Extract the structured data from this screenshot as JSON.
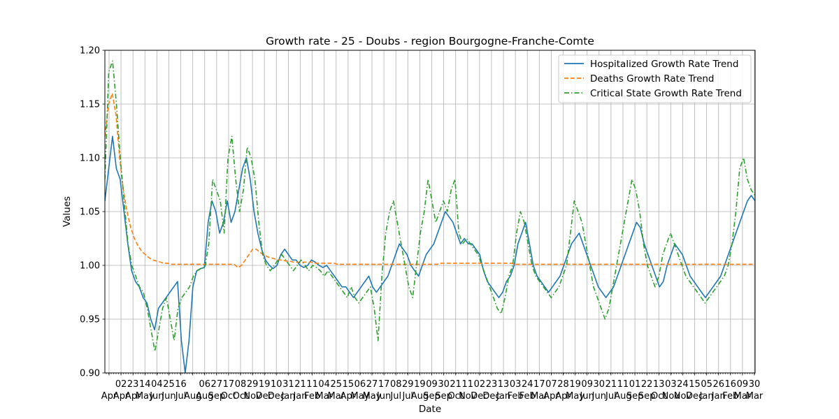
{
  "chart_data": {
    "type": "line",
    "title": "Growth rate - 25 - Doubs - region Bourgogne-Franche-Comte",
    "xlabel": "Date",
    "ylabel": "Values",
    "ylim": [
      0.9,
      1.2
    ],
    "yticks": [
      "0.90",
      "0.95",
      "1.00",
      "1.05",
      "1.10",
      "1.15",
      "1.20"
    ],
    "grid": true,
    "legend_position": "top-right",
    "x_tick_labels": [
      {
        "day": "",
        "month": "Apr"
      },
      {
        "day": "02",
        "month": "Apr"
      },
      {
        "day": "23",
        "month": "Apr"
      },
      {
        "day": "14",
        "month": "May"
      },
      {
        "day": "04",
        "month": "Jun"
      },
      {
        "day": "25",
        "month": "Jun"
      },
      {
        "day": "16",
        "month": "Jul"
      },
      {
        "day": "",
        "month": "Aug"
      },
      {
        "day": "06",
        "month": "Aug"
      },
      {
        "day": "27",
        "month": "Sep"
      },
      {
        "day": "17",
        "month": "Oct"
      },
      {
        "day": "08",
        "month": "Oct"
      },
      {
        "day": "29",
        "month": "Nov"
      },
      {
        "day": "19",
        "month": "Dec"
      },
      {
        "day": "10",
        "month": "Dec"
      },
      {
        "day": "31",
        "month": "Jan"
      },
      {
        "day": "21",
        "month": "Jan"
      },
      {
        "day": "11",
        "month": "Feb"
      },
      {
        "day": "04",
        "month": "Mar"
      },
      {
        "day": "25",
        "month": "Mar"
      },
      {
        "day": "15",
        "month": "Apr"
      },
      {
        "day": "06",
        "month": "May"
      },
      {
        "day": "27",
        "month": "May"
      },
      {
        "day": "17",
        "month": "Jun"
      },
      {
        "day": "08",
        "month": "Jul"
      },
      {
        "day": "29",
        "month": "Jul"
      },
      {
        "day": "19",
        "month": "Aug"
      },
      {
        "day": "09",
        "month": "Sep"
      },
      {
        "day": "30",
        "month": "Sep"
      },
      {
        "day": "21",
        "month": "Oct"
      },
      {
        "day": "11",
        "month": "Nov"
      },
      {
        "day": "02",
        "month": "Dec"
      },
      {
        "day": "23",
        "month": "Dec"
      },
      {
        "day": "13",
        "month": "Jan"
      },
      {
        "day": "03",
        "month": "Feb"
      },
      {
        "day": "24",
        "month": "Feb"
      },
      {
        "day": "17",
        "month": "Mar"
      },
      {
        "day": "07",
        "month": "Apr"
      },
      {
        "day": "28",
        "month": "Apr"
      },
      {
        "day": "19",
        "month": "May"
      },
      {
        "day": "09",
        "month": "Jun"
      },
      {
        "day": "30",
        "month": "Jun"
      },
      {
        "day": "21",
        "month": "Jul"
      },
      {
        "day": "11",
        "month": "Aug"
      },
      {
        "day": "01",
        "month": "Sep"
      },
      {
        "day": "22",
        "month": "Sep"
      },
      {
        "day": "13",
        "month": "Oct"
      },
      {
        "day": "03",
        "month": "Nov"
      },
      {
        "day": "24",
        "month": "Nov"
      },
      {
        "day": "15",
        "month": "Dec"
      },
      {
        "day": "05",
        "month": "Jan"
      },
      {
        "day": "26",
        "month": "Jan"
      },
      {
        "day": "16",
        "month": "Feb"
      },
      {
        "day": "09",
        "month": "Mar"
      },
      {
        "day": "30",
        "month": "Mar"
      }
    ],
    "series": [
      {
        "name": "Hospitalized Growth Rate Trend",
        "color": "#1f77b4",
        "dash": "solid",
        "values": [
          1.06,
          1.09,
          1.12,
          1.09,
          1.08,
          1.05,
          1.02,
          0.995,
          0.985,
          0.98,
          0.97,
          0.965,
          0.95,
          0.94,
          0.96,
          0.965,
          0.97,
          0.975,
          0.98,
          0.985,
          0.93,
          0.9,
          0.93,
          0.98,
          0.995,
          0.997,
          0.998,
          1.04,
          1.06,
          1.05,
          1.03,
          1.04,
          1.06,
          1.04,
          1.05,
          1.07,
          1.09,
          1.1,
          1.08,
          1.05,
          1.03,
          1.015,
          1.005,
          1.0,
          0.997,
          1.0,
          1.01,
          1.015,
          1.01,
          1.005,
          1.005,
          1.0,
          0.998,
          1.0,
          1.005,
          1.003,
          1.0,
          0.998,
          1.0,
          0.995,
          0.99,
          0.985,
          0.98,
          0.98,
          0.975,
          0.97,
          0.975,
          0.98,
          0.985,
          0.99,
          0.98,
          0.975,
          0.98,
          0.985,
          0.99,
          1.0,
          1.01,
          1.02,
          1.015,
          1.01,
          1.0,
          0.995,
          0.99,
          1.0,
          1.01,
          1.015,
          1.02,
          1.03,
          1.04,
          1.05,
          1.045,
          1.04,
          1.03,
          1.02,
          1.025,
          1.02,
          1.02,
          1.015,
          1.01,
          0.995,
          0.985,
          0.98,
          0.975,
          0.97,
          0.975,
          0.985,
          0.99,
          1.0,
          1.02,
          1.03,
          1.04,
          1.02,
          1.0,
          0.99,
          0.985,
          0.98,
          0.975,
          0.98,
          0.985,
          0.99,
          1.0,
          1.01,
          1.02,
          1.025,
          1.03,
          1.02,
          1.01,
          1.0,
          0.99,
          0.98,
          0.975,
          0.97,
          0.975,
          0.98,
          0.99,
          1.0,
          1.01,
          1.02,
          1.03,
          1.04,
          1.035,
          1.02,
          1.01,
          1.0,
          0.99,
          0.98,
          0.985,
          1.0,
          1.01,
          1.02,
          1.015,
          1.01,
          1.0,
          0.99,
          0.985,
          0.98,
          0.975,
          0.97,
          0.975,
          0.98,
          0.985,
          0.99,
          1.0,
          1.01,
          1.02,
          1.03,
          1.04,
          1.05,
          1.06,
          1.065,
          1.06
        ]
      },
      {
        "name": "Deaths Growth Rate Trend",
        "color": "#ff7f0e",
        "dash": "dashed",
        "values": [
          1.12,
          1.15,
          1.16,
          1.14,
          1.1,
          1.07,
          1.05,
          1.035,
          1.025,
          1.018,
          1.013,
          1.01,
          1.007,
          1.005,
          1.004,
          1.003,
          1.002,
          1.002,
          1.001,
          1.001,
          1.001,
          1.001,
          1.001,
          1.001,
          1.001,
          1.001,
          1.001,
          1.001,
          1.001,
          1.001,
          1.001,
          1.001,
          1.001,
          1.001,
          1.001,
          1.001,
          0.998,
          1.0,
          1.005,
          1.01,
          1.015,
          1.015,
          1.012,
          1.01,
          1.008,
          1.007,
          1.006,
          1.005,
          1.005,
          1.004,
          1.004,
          1.003,
          1.003,
          1.003,
          1.003,
          1.003,
          1.003,
          1.002,
          1.002,
          1.002,
          1.002,
          1.002,
          1.002,
          1.001,
          1.001,
          1.001,
          1.001,
          1.001,
          1.001,
          1.001,
          1.001,
          1.001,
          1.001,
          1.001,
          1.001,
          1.001,
          1.001,
          1.001,
          1.001,
          1.001,
          1.001,
          1.001,
          1.001,
          1.001,
          1.001,
          1.001,
          1.001,
          1.001,
          1.001,
          1.001,
          1.001,
          1.002,
          1.002,
          1.002,
          1.002,
          1.002,
          1.002,
          1.002,
          1.002,
          1.002,
          1.002,
          1.002,
          1.002,
          1.002,
          1.002,
          1.002,
          1.002,
          1.002,
          1.002,
          1.002,
          1.002,
          1.001,
          1.001,
          1.001,
          1.001,
          1.001,
          1.001,
          1.001,
          1.001,
          1.001,
          1.001,
          1.001,
          1.001,
          1.001,
          1.001,
          1.001,
          1.001,
          1.001,
          1.001,
          1.001,
          1.001,
          1.001,
          1.001,
          1.001,
          1.001,
          1.001,
          1.001,
          1.001,
          1.001,
          1.001,
          1.001,
          1.001,
          1.001,
          1.001,
          1.001,
          1.001,
          1.001,
          1.001,
          1.001,
          1.001,
          1.001,
          1.001,
          1.001,
          1.001,
          1.001,
          1.001,
          1.001,
          1.001,
          1.001,
          1.001,
          1.001,
          1.001,
          1.001,
          1.001,
          1.001,
          1.001,
          1.001,
          1.001,
          1.001,
          1.001,
          1.001,
          1.001,
          1.001,
          1.001,
          1.001,
          1.001,
          1.001
        ]
      },
      {
        "name": "Critical State Growth Rate Trend",
        "color": "#2ca02c",
        "dash": "dashdot",
        "values": [
          1.08,
          1.18,
          1.19,
          1.15,
          1.1,
          1.06,
          1.02,
          1.0,
          0.99,
          0.98,
          0.975,
          0.96,
          0.94,
          0.92,
          0.94,
          0.96,
          0.97,
          0.95,
          0.93,
          0.96,
          0.97,
          0.975,
          0.98,
          0.99,
          0.995,
          0.997,
          0.998,
          1.02,
          1.08,
          1.07,
          1.06,
          1.03,
          1.1,
          1.12,
          1.08,
          1.05,
          1.07,
          1.11,
          1.1,
          1.08,
          1.04,
          1.01,
          1.0,
          0.995,
          1.0,
          1.005,
          1.01,
          1.005,
          1.0,
          0.995,
          1.0,
          1.005,
          1.0,
          0.995,
          1.0,
          0.998,
          0.995,
          0.99,
          0.995,
          0.99,
          0.985,
          0.98,
          0.975,
          0.97,
          0.98,
          0.97,
          0.965,
          0.97,
          0.975,
          0.98,
          0.96,
          0.93,
          0.99,
          1.03,
          1.05,
          1.06,
          1.04,
          1.02,
          1.0,
          0.98,
          0.97,
          1.0,
          1.03,
          1.05,
          1.08,
          1.06,
          1.04,
          1.05,
          1.06,
          1.05,
          1.07,
          1.08,
          1.03,
          1.02,
          1.025,
          1.02,
          1.015,
          1.01,
          1.0,
          0.99,
          0.98,
          0.97,
          0.96,
          0.955,
          0.97,
          0.99,
          1.0,
          1.03,
          1.05,
          1.04,
          1.02,
          1.0,
          0.99,
          0.985,
          0.98,
          0.975,
          0.97,
          0.975,
          0.98,
          0.99,
          1.0,
          1.03,
          1.06,
          1.05,
          1.04,
          1.02,
          1.0,
          0.98,
          0.97,
          0.96,
          0.95,
          0.96,
          0.98,
          1.0,
          1.02,
          1.04,
          1.06,
          1.08,
          1.07,
          1.05,
          1.02,
          1.0,
          0.99,
          0.98,
          0.99,
          1.01,
          1.02,
          1.03,
          1.02,
          1.01,
          1.0,
          0.99,
          0.985,
          0.98,
          0.975,
          0.97,
          0.965,
          0.97,
          0.975,
          0.98,
          0.985,
          0.99,
          1.0,
          1.02,
          1.05,
          1.09,
          1.1,
          1.08,
          1.07,
          1.065
        ]
      }
    ]
  }
}
